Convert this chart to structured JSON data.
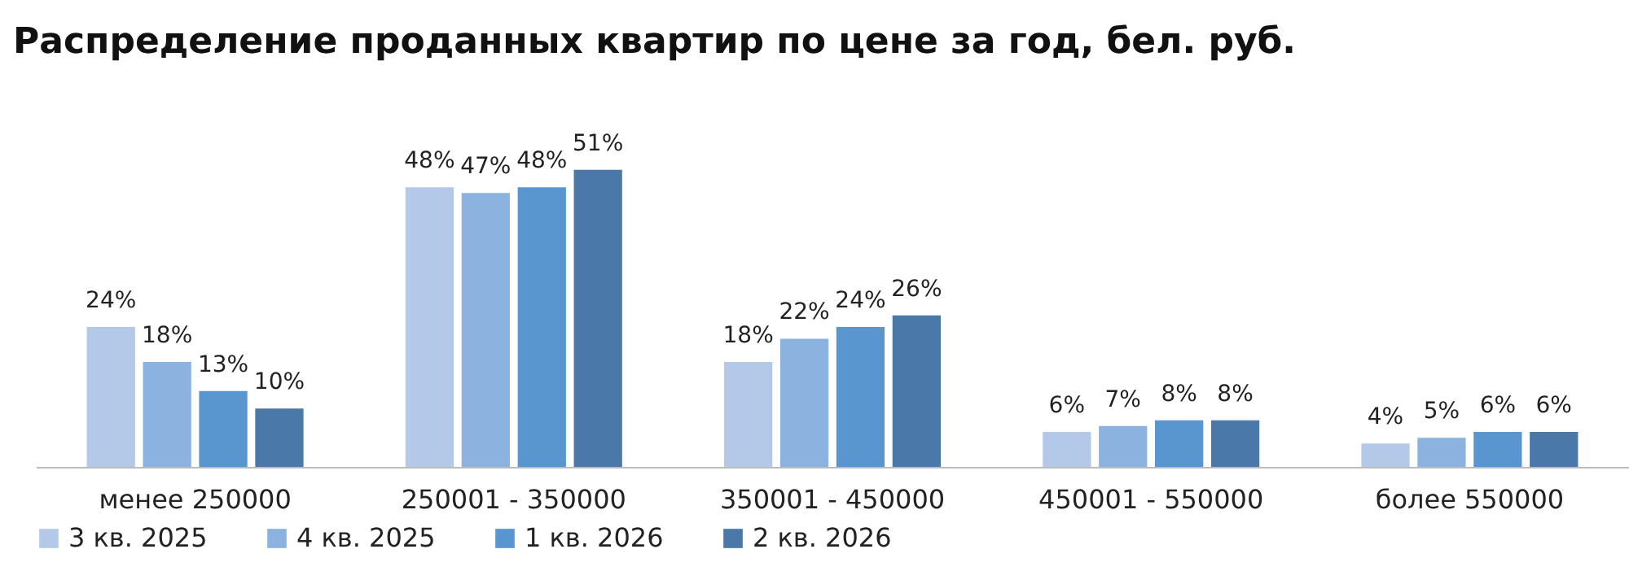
{
  "chart_data": {
    "type": "bar",
    "title": "Распределение проданных квартир по цене за год, бел. руб.",
    "categories": [
      "менее 250000",
      "250001 - 350000",
      "350001 - 450000",
      "450001 - 550000",
      "более 550000"
    ],
    "series": [
      {
        "name": "3 кв. 2025",
        "color": "#b4c8e8",
        "values": [
          24,
          48,
          18,
          6,
          4
        ],
        "value_labels": [
          "24%",
          "48%",
          "18%",
          "6%",
          "4%"
        ]
      },
      {
        "name": "4 кв. 2025",
        "color": "#8cb2e0",
        "values": [
          18,
          47,
          22,
          7,
          5
        ],
        "value_labels": [
          "18%",
          "47%",
          "22%",
          "7%",
          "5%"
        ]
      },
      {
        "name": "1 кв. 2026",
        "color": "#5996cf",
        "values": [
          13,
          48,
          24,
          8,
          6
        ],
        "value_labels": [
          "13%",
          "48%",
          "24%",
          "8%",
          "6%"
        ]
      },
      {
        "name": "2 кв. 2026",
        "color": "#4a78a8",
        "values": [
          10,
          51,
          26,
          8,
          6
        ],
        "value_labels": [
          "10%",
          "51%",
          "26%",
          "8%",
          "6%"
        ]
      }
    ],
    "legend": "bottom",
    "grid": false
  }
}
